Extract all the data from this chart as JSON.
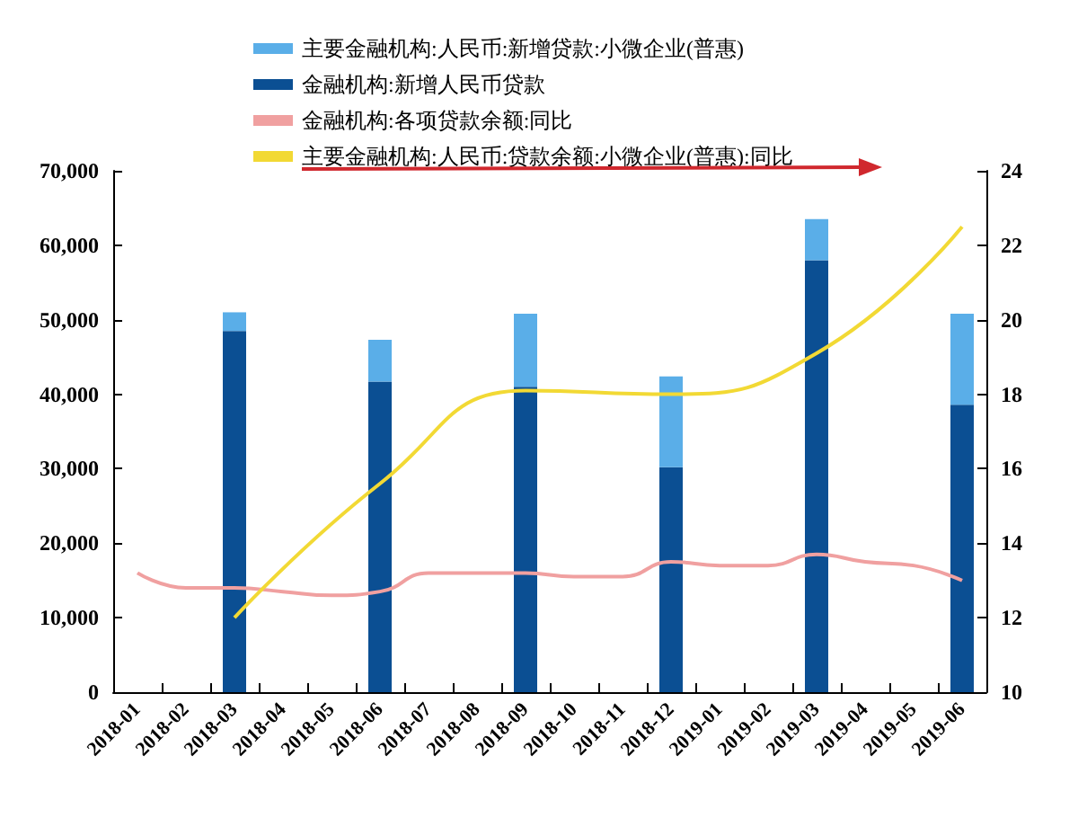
{
  "chart_data": {
    "type": "bar",
    "stacked": true,
    "legend": "top",
    "categories": [
      "2018-01",
      "2018-02",
      "2018-03",
      "2018-04",
      "2018-05",
      "2018-06",
      "2018-07",
      "2018-08",
      "2018-09",
      "2018-10",
      "2018-11",
      "2018-12",
      "2019-01",
      "2019-02",
      "2019-03",
      "2019-04",
      "2019-05",
      "2019-06"
    ],
    "series": [
      {
        "name": "金融机构:新增人民币贷款",
        "color": "#0b4f93",
        "values": [
          null,
          null,
          48500,
          null,
          null,
          41700,
          null,
          null,
          41000,
          null,
          null,
          30200,
          null,
          null,
          58000,
          null,
          null,
          38600
        ]
      },
      {
        "name": "主要金融机构:人民币:新增贷款:小微企业(普惠)",
        "color": "#5aaee8",
        "values": [
          null,
          null,
          2500,
          null,
          null,
          5600,
          null,
          null,
          9800,
          null,
          null,
          12200,
          null,
          null,
          5500,
          null,
          null,
          12200
        ]
      },
      {
        "name": "金融机构:各项贷款余额:同比",
        "color": "#f0a0a0",
        "type": "line",
        "axis": "y2",
        "values": [
          13.2,
          12.8,
          12.8,
          12.7,
          12.6,
          12.7,
          13.2,
          13.2,
          13.2,
          13.1,
          13.1,
          13.5,
          13.4,
          13.4,
          13.7,
          13.5,
          13.4,
          13.0
        ]
      },
      {
        "name": "主要金融机构:人民币:贷款余额:小微企业(普惠):同比",
        "color": "#f2d934",
        "type": "line",
        "axis": "y2",
        "values": [
          null,
          null,
          12.0,
          null,
          null,
          15.6,
          null,
          null,
          18.1,
          null,
          null,
          18.0,
          null,
          null,
          19.1,
          null,
          null,
          22.5
        ]
      }
    ],
    "ylim": [
      0,
      70000
    ],
    "yticks": [
      {
        "value": 0,
        "label": "0"
      },
      {
        "value": 10000,
        "label": "10,000"
      },
      {
        "value": 20000,
        "label": "20,000"
      },
      {
        "value": 30000,
        "label": "30,000"
      },
      {
        "value": 40000,
        "label": "40,000"
      },
      {
        "value": 50000,
        "label": "50,000"
      },
      {
        "value": 60000,
        "label": "60,000"
      },
      {
        "value": 70000,
        "label": "70,000"
      }
    ],
    "y2lim": [
      10,
      24
    ],
    "y2ticks": [
      10,
      12,
      14,
      16,
      18,
      20,
      22,
      24
    ],
    "grid": false,
    "marker": "none"
  }
}
